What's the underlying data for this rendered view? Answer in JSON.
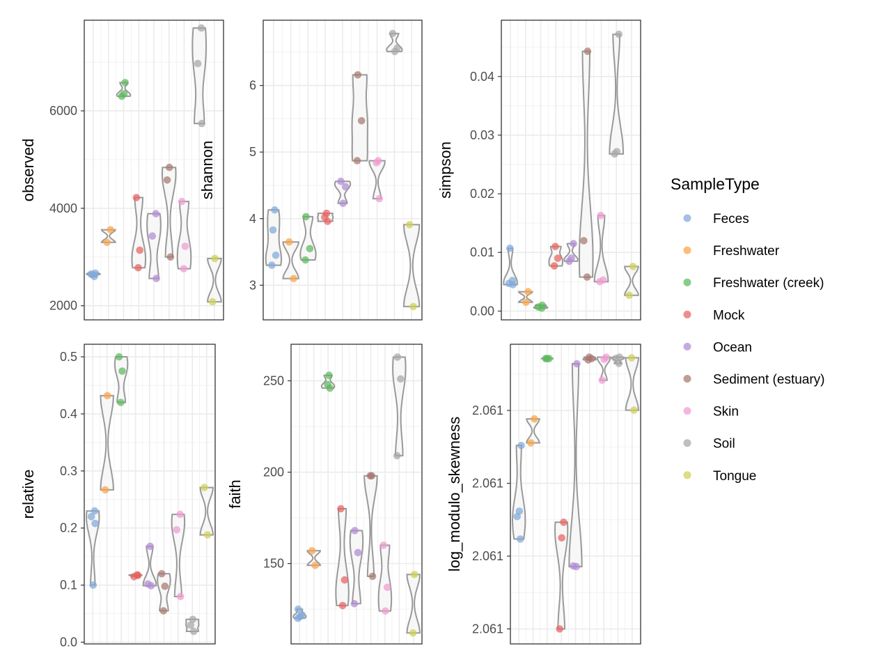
{
  "legend": {
    "title": "SampleType",
    "items": [
      {
        "name": "Feces",
        "color": "#80A9D9"
      },
      {
        "name": "Freshwater",
        "color": "#FAA346"
      },
      {
        "name": "Freshwater (creek)",
        "color": "#5CB85C"
      },
      {
        "name": "Mock",
        "color": "#E8615E"
      },
      {
        "name": "Ocean",
        "color": "#B08BD2"
      },
      {
        "name": "Sediment (estuary)",
        "color": "#A8776E"
      },
      {
        "name": "Skin",
        "color": "#F09BD1"
      },
      {
        "name": "Soil",
        "color": "#A6A6A6"
      },
      {
        "name": "Tongue",
        "color": "#CFD054"
      }
    ]
  },
  "chart_data": [
    {
      "type": "scatter",
      "subtype": "violin-jitter",
      "ylabel": "observed",
      "xlabel": "",
      "ylim": [
        1710,
        7860
      ],
      "yticks": [
        2000,
        4000,
        6000
      ],
      "ytick_labels": [
        "2000",
        "4000",
        "6000"
      ],
      "grid": true,
      "categories": [
        "Feces",
        "Freshwater",
        "Freshwater (creek)",
        "Mock",
        "Ocean",
        "Sediment (estuary)",
        "Skin",
        "Soil",
        "Tongue"
      ],
      "series": [
        {
          "values": [
            2650,
            2600,
            2640,
            2670
          ]
        },
        {
          "values": [
            3560,
            3300
          ]
        },
        {
          "values": [
            6350,
            6300,
            6580
          ]
        },
        {
          "values": [
            4220,
            3140,
            2780
          ]
        },
        {
          "values": [
            3890,
            3430,
            2560
          ]
        },
        {
          "values": [
            4840,
            4580,
            3000
          ]
        },
        {
          "values": [
            4140,
            3220,
            2760
          ]
        },
        {
          "values": [
            7700,
            6970,
            5740
          ]
        },
        {
          "values": [
            2970,
            2080
          ]
        }
      ]
    },
    {
      "type": "scatter",
      "subtype": "violin-jitter",
      "ylabel": "shannon",
      "xlabel": "",
      "ylim": [
        2.48,
        6.98
      ],
      "yticks": [
        3,
        4,
        5,
        6
      ],
      "ytick_labels": [
        "3",
        "4",
        "5",
        "6"
      ],
      "grid": true,
      "categories": [
        "Feces",
        "Freshwater",
        "Freshwater (creek)",
        "Mock",
        "Ocean",
        "Sediment (estuary)",
        "Skin",
        "Soil",
        "Tongue"
      ],
      "series": [
        {
          "values": [
            4.13,
            3.83,
            3.45,
            3.3
          ]
        },
        {
          "values": [
            3.65,
            3.1
          ]
        },
        {
          "values": [
            4.03,
            3.55,
            3.38
          ]
        },
        {
          "values": [
            4.08,
            4.02,
            3.96
          ]
        },
        {
          "values": [
            4.56,
            4.48,
            4.23
          ]
        },
        {
          "values": [
            6.16,
            5.47,
            4.87
          ]
        },
        {
          "values": [
            4.87,
            4.84,
            4.3
          ]
        },
        {
          "values": [
            6.78,
            6.56,
            6.51
          ]
        },
        {
          "values": [
            3.91,
            2.68
          ]
        }
      ]
    },
    {
      "type": "scatter",
      "subtype": "violin-jitter",
      "ylabel": "simpson",
      "xlabel": "",
      "ylim": [
        -0.0015,
        0.0496
      ],
      "yticks": [
        0.0,
        0.01,
        0.02,
        0.03,
        0.04
      ],
      "ytick_labels": [
        "0.00",
        "0.01",
        "0.02",
        "0.03",
        "0.04"
      ],
      "grid": true,
      "categories": [
        "Feces",
        "Freshwater",
        "Freshwater (creek)",
        "Mock",
        "Ocean",
        "Sediment (estuary)",
        "Skin",
        "Soil",
        "Tongue"
      ],
      "series": [
        {
          "values": [
            0.0107,
            0.0052,
            0.0047,
            0.0045
          ]
        },
        {
          "values": [
            0.0033,
            0.0015
          ]
        },
        {
          "values": [
            0.001,
            0.0007,
            0.0005
          ]
        },
        {
          "values": [
            0.011,
            0.009,
            0.0077
          ]
        },
        {
          "values": [
            0.0115,
            0.009,
            0.0085
          ]
        },
        {
          "values": [
            0.0443,
            0.012,
            0.0058
          ]
        },
        {
          "values": [
            0.0163,
            0.0053,
            0.005
          ]
        },
        {
          "values": [
            0.0472,
            0.0272,
            0.0268
          ]
        },
        {
          "values": [
            0.0076,
            0.0027
          ]
        }
      ]
    },
    {
      "type": "scatter",
      "subtype": "violin-jitter",
      "ylabel": "relative",
      "xlabel": "",
      "ylim": [
        -0.003,
        0.522
      ],
      "yticks": [
        0.0,
        0.1,
        0.2,
        0.3,
        0.4,
        0.5
      ],
      "ytick_labels": [
        "0.0",
        "0.1",
        "0.2",
        "0.3",
        "0.4",
        "0.5"
      ],
      "grid": true,
      "categories": [
        "Feces",
        "Freshwater",
        "Freshwater (creek)",
        "Mock",
        "Ocean",
        "Sediment (estuary)",
        "Skin",
        "Soil",
        "Tongue"
      ],
      "series": [
        {
          "values": [
            0.23,
            0.22,
            0.208,
            0.1
          ]
        },
        {
          "values": [
            0.432,
            0.267
          ]
        },
        {
          "values": [
            0.5,
            0.475,
            0.42
          ]
        },
        {
          "values": [
            0.118,
            0.115,
            0.117
          ]
        },
        {
          "values": [
            0.168,
            0.102,
            0.099
          ]
        },
        {
          "values": [
            0.12,
            0.098,
            0.055
          ]
        },
        {
          "values": [
            0.224,
            0.197,
            0.08
          ]
        },
        {
          "values": [
            0.04,
            0.03,
            0.019
          ]
        },
        {
          "values": [
            0.271,
            0.188
          ]
        }
      ]
    },
    {
      "type": "scatter",
      "subtype": "violin-jitter",
      "ylabel": "faith",
      "xlabel": "",
      "ylim": [
        106,
        270
      ],
      "yticks": [
        150,
        200,
        250
      ],
      "ytick_labels": [
        "150",
        "200",
        "250"
      ],
      "grid": true,
      "categories": [
        "Feces",
        "Freshwater",
        "Freshwater (creek)",
        "Mock",
        "Ocean",
        "Sediment (estuary)",
        "Skin",
        "Soil",
        "Tongue"
      ],
      "series": [
        {
          "values": [
            125,
            122,
            121,
            120
          ]
        },
        {
          "values": [
            157,
            149
          ]
        },
        {
          "values": [
            253,
            248,
            246
          ]
        },
        {
          "values": [
            180,
            141,
            127
          ]
        },
        {
          "values": [
            168,
            156,
            128
          ]
        },
        {
          "values": [
            198,
            198,
            143
          ]
        },
        {
          "values": [
            160,
            137,
            124
          ]
        },
        {
          "values": [
            263,
            251,
            209
          ]
        },
        {
          "values": [
            144,
            112
          ]
        }
      ]
    },
    {
      "type": "scatter",
      "subtype": "violin-jitter",
      "ylabel": "log_modulo_skewness",
      "xlabel": "",
      "ylim": [
        0.0,
        1.0
      ],
      "yticks": [
        0.05,
        0.293,
        0.536,
        0.779
      ],
      "ytick_labels": [
        "2.061",
        "2.061",
        "2.061",
        "2.061"
      ],
      "grid": true,
      "categories": [
        "Feces",
        "Freshwater",
        "Freshwater (creek)",
        "Mock",
        "Ocean",
        "Sediment (estuary)",
        "Skin",
        "Soil",
        "Tongue"
      ],
      "series": [
        {
          "values": [
            0.662,
            0.443,
            0.425,
            0.35
          ]
        },
        {
          "values": [
            0.751,
            0.671
          ]
        },
        {
          "values": [
            0.952,
            0.952,
            0.952
          ]
        },
        {
          "values": [
            0.406,
            0.354,
            0.05
          ]
        },
        {
          "values": [
            0.935,
            0.26,
            0.258
          ]
        },
        {
          "values": [
            0.957,
            0.952,
            0.948
          ]
        },
        {
          "values": [
            0.957,
            0.95,
            0.88
          ]
        },
        {
          "values": [
            0.957,
            0.952,
            0.936
          ]
        },
        {
          "values": [
            0.955,
            0.78
          ]
        }
      ]
    }
  ]
}
